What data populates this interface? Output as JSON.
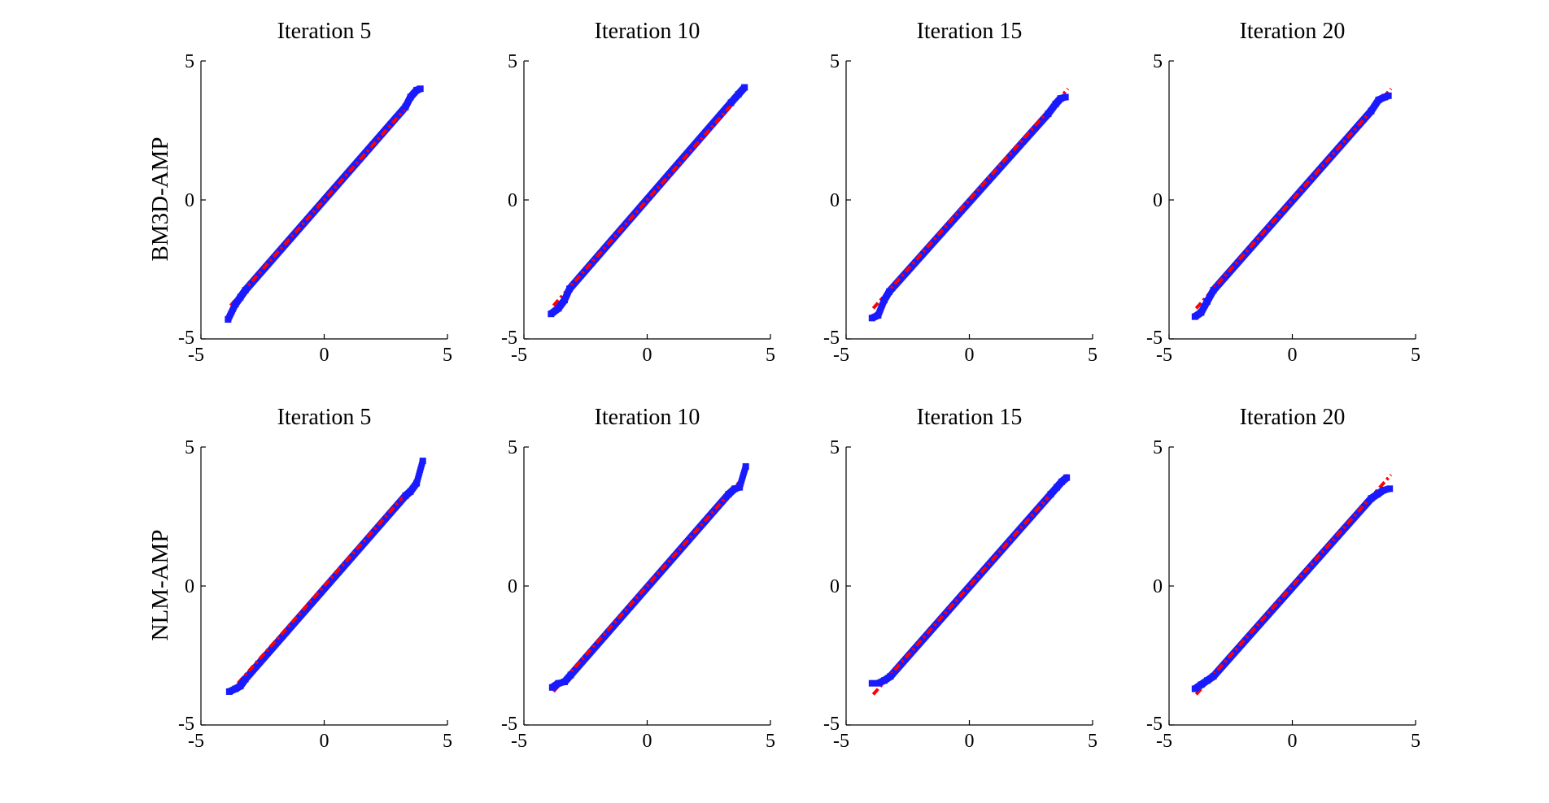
{
  "row_labels": [
    "BM3D-AMP",
    "NLM-AMP"
  ],
  "column_titles": [
    "Iteration 5",
    "Iteration 10",
    "Iteration 15",
    "Iteration 20"
  ],
  "colors": {
    "points": "#1a1aff",
    "reference_line": "#ff0000"
  },
  "chart_data": [
    {
      "type": "scatter",
      "title": "Iteration 5",
      "ylabel": "BM3D-AMP",
      "xlim": [
        -5,
        5
      ],
      "ylim": [
        -5,
        5
      ],
      "xticks": [
        "-5",
        "0",
        "5"
      ],
      "yticks": [
        "-5",
        "0",
        "5"
      ],
      "tails": {
        "low": [
          [
            -3.9,
            -4.3
          ],
          [
            -3.6,
            -3.75
          ],
          [
            -3.4,
            -3.5
          ],
          [
            -3.2,
            -3.25
          ]
        ],
        "high": [
          [
            3.3,
            3.35
          ],
          [
            3.5,
            3.7
          ],
          [
            3.75,
            3.95
          ],
          [
            3.9,
            4.0
          ]
        ]
      },
      "reference_line": [
        [
          -3.8,
          -3.8
        ],
        [
          3.4,
          3.4
        ]
      ]
    },
    {
      "type": "scatter",
      "title": "Iteration 10",
      "xlim": [
        -5,
        5
      ],
      "ylim": [
        -5,
        5
      ],
      "xticks": [
        "-5",
        "0",
        "5"
      ],
      "yticks": [
        "-5",
        "0",
        "5"
      ],
      "tails": {
        "low": [
          [
            -3.9,
            -4.1
          ],
          [
            -3.6,
            -3.9
          ],
          [
            -3.35,
            -3.6
          ],
          [
            -3.15,
            -3.2
          ]
        ],
        "high": [
          [
            3.4,
            3.5
          ],
          [
            3.7,
            3.8
          ],
          [
            3.95,
            4.05
          ]
        ]
      },
      "reference_line": [
        [
          -3.8,
          -3.8
        ],
        [
          3.7,
          3.7
        ]
      ]
    },
    {
      "type": "scatter",
      "title": "Iteration 15",
      "xlim": [
        -5,
        5
      ],
      "ylim": [
        -5,
        5
      ],
      "xticks": [
        "-5",
        "0",
        "5"
      ],
      "yticks": [
        "-5",
        "0",
        "5"
      ],
      "tails": {
        "low": [
          [
            -3.95,
            -4.25
          ],
          [
            -3.7,
            -4.15
          ],
          [
            -3.45,
            -3.6
          ],
          [
            -3.25,
            -3.3
          ]
        ],
        "high": [
          [
            3.2,
            3.1
          ],
          [
            3.5,
            3.45
          ],
          [
            3.7,
            3.65
          ],
          [
            3.9,
            3.7
          ]
        ]
      },
      "reference_line": [
        [
          -3.9,
          -3.9
        ],
        [
          4.0,
          4.0
        ]
      ]
    },
    {
      "type": "scatter",
      "title": "Iteration 20",
      "xlim": [
        -5,
        5
      ],
      "ylim": [
        -5,
        5
      ],
      "xticks": [
        "-5",
        "0",
        "5"
      ],
      "yticks": [
        "-5",
        "0",
        "5"
      ],
      "tails": {
        "low": [
          [
            -3.95,
            -4.2
          ],
          [
            -3.7,
            -4.05
          ],
          [
            -3.45,
            -3.65
          ],
          [
            -3.2,
            -3.25
          ]
        ],
        "high": [
          [
            3.2,
            3.2
          ],
          [
            3.5,
            3.6
          ],
          [
            3.75,
            3.7
          ],
          [
            3.9,
            3.75
          ]
        ]
      },
      "reference_line": [
        [
          -3.9,
          -3.9
        ],
        [
          4.0,
          4.0
        ]
      ]
    },
    {
      "type": "scatter",
      "title": "Iteration 5",
      "ylabel": "NLM-AMP",
      "xlim": [
        -5,
        5
      ],
      "ylim": [
        -5,
        5
      ],
      "xticks": [
        "-5",
        "0",
        "5"
      ],
      "yticks": [
        "-5",
        "0",
        "5"
      ],
      "tails": {
        "low": [
          [
            -3.85,
            -3.8
          ],
          [
            -3.6,
            -3.7
          ],
          [
            -3.4,
            -3.6
          ],
          [
            -3.2,
            -3.35
          ]
        ],
        "high": [
          [
            3.3,
            3.25
          ],
          [
            3.5,
            3.4
          ],
          [
            3.75,
            3.7
          ],
          [
            4.0,
            4.5
          ]
        ]
      },
      "reference_line": [
        [
          -3.5,
          -3.5
        ],
        [
          3.3,
          3.3
        ]
      ]
    },
    {
      "type": "scatter",
      "title": "Iteration 10",
      "xlim": [
        -5,
        5
      ],
      "ylim": [
        -5,
        5
      ],
      "xticks": [
        "-5",
        "0",
        "5"
      ],
      "yticks": [
        "-5",
        "0",
        "5"
      ],
      "tails": {
        "low": [
          [
            -3.85,
            -3.65
          ],
          [
            -3.6,
            -3.5
          ],
          [
            -3.35,
            -3.45
          ],
          [
            -3.1,
            -3.2
          ]
        ],
        "high": [
          [
            3.3,
            3.3
          ],
          [
            3.55,
            3.5
          ],
          [
            3.75,
            3.55
          ],
          [
            4.0,
            4.3
          ]
        ]
      },
      "reference_line": [
        [
          -3.8,
          -3.8
        ],
        [
          3.9,
          3.9
        ]
      ]
    },
    {
      "type": "scatter",
      "title": "Iteration 15",
      "xlim": [
        -5,
        5
      ],
      "ylim": [
        -5,
        5
      ],
      "xticks": [
        "-5",
        "0",
        "5"
      ],
      "yticks": [
        "-5",
        "0",
        "5"
      ],
      "tails": {
        "low": [
          [
            -3.95,
            -3.5
          ],
          [
            -3.7,
            -3.5
          ],
          [
            -3.45,
            -3.4
          ],
          [
            -3.2,
            -3.25
          ]
        ],
        "high": [
          [
            3.3,
            3.3
          ],
          [
            3.55,
            3.55
          ],
          [
            3.75,
            3.75
          ],
          [
            3.95,
            3.9
          ]
        ]
      },
      "reference_line": [
        [
          -3.9,
          -3.9
        ],
        [
          4.0,
          4.0
        ]
      ]
    },
    {
      "type": "scatter",
      "title": "Iteration 20",
      "xlim": [
        -5,
        5
      ],
      "ylim": [
        -5,
        5
      ],
      "xticks": [
        "-5",
        "0",
        "5"
      ],
      "yticks": [
        "-5",
        "0",
        "5"
      ],
      "tails": {
        "low": [
          [
            -3.95,
            -3.7
          ],
          [
            -3.7,
            -3.55
          ],
          [
            -3.45,
            -3.4
          ],
          [
            -3.2,
            -3.25
          ]
        ],
        "high": [
          [
            3.2,
            3.15
          ],
          [
            3.45,
            3.3
          ],
          [
            3.7,
            3.45
          ],
          [
            3.95,
            3.5
          ]
        ]
      },
      "reference_line": [
        [
          -3.9,
          -3.9
        ],
        [
          4.0,
          4.0
        ]
      ]
    }
  ]
}
